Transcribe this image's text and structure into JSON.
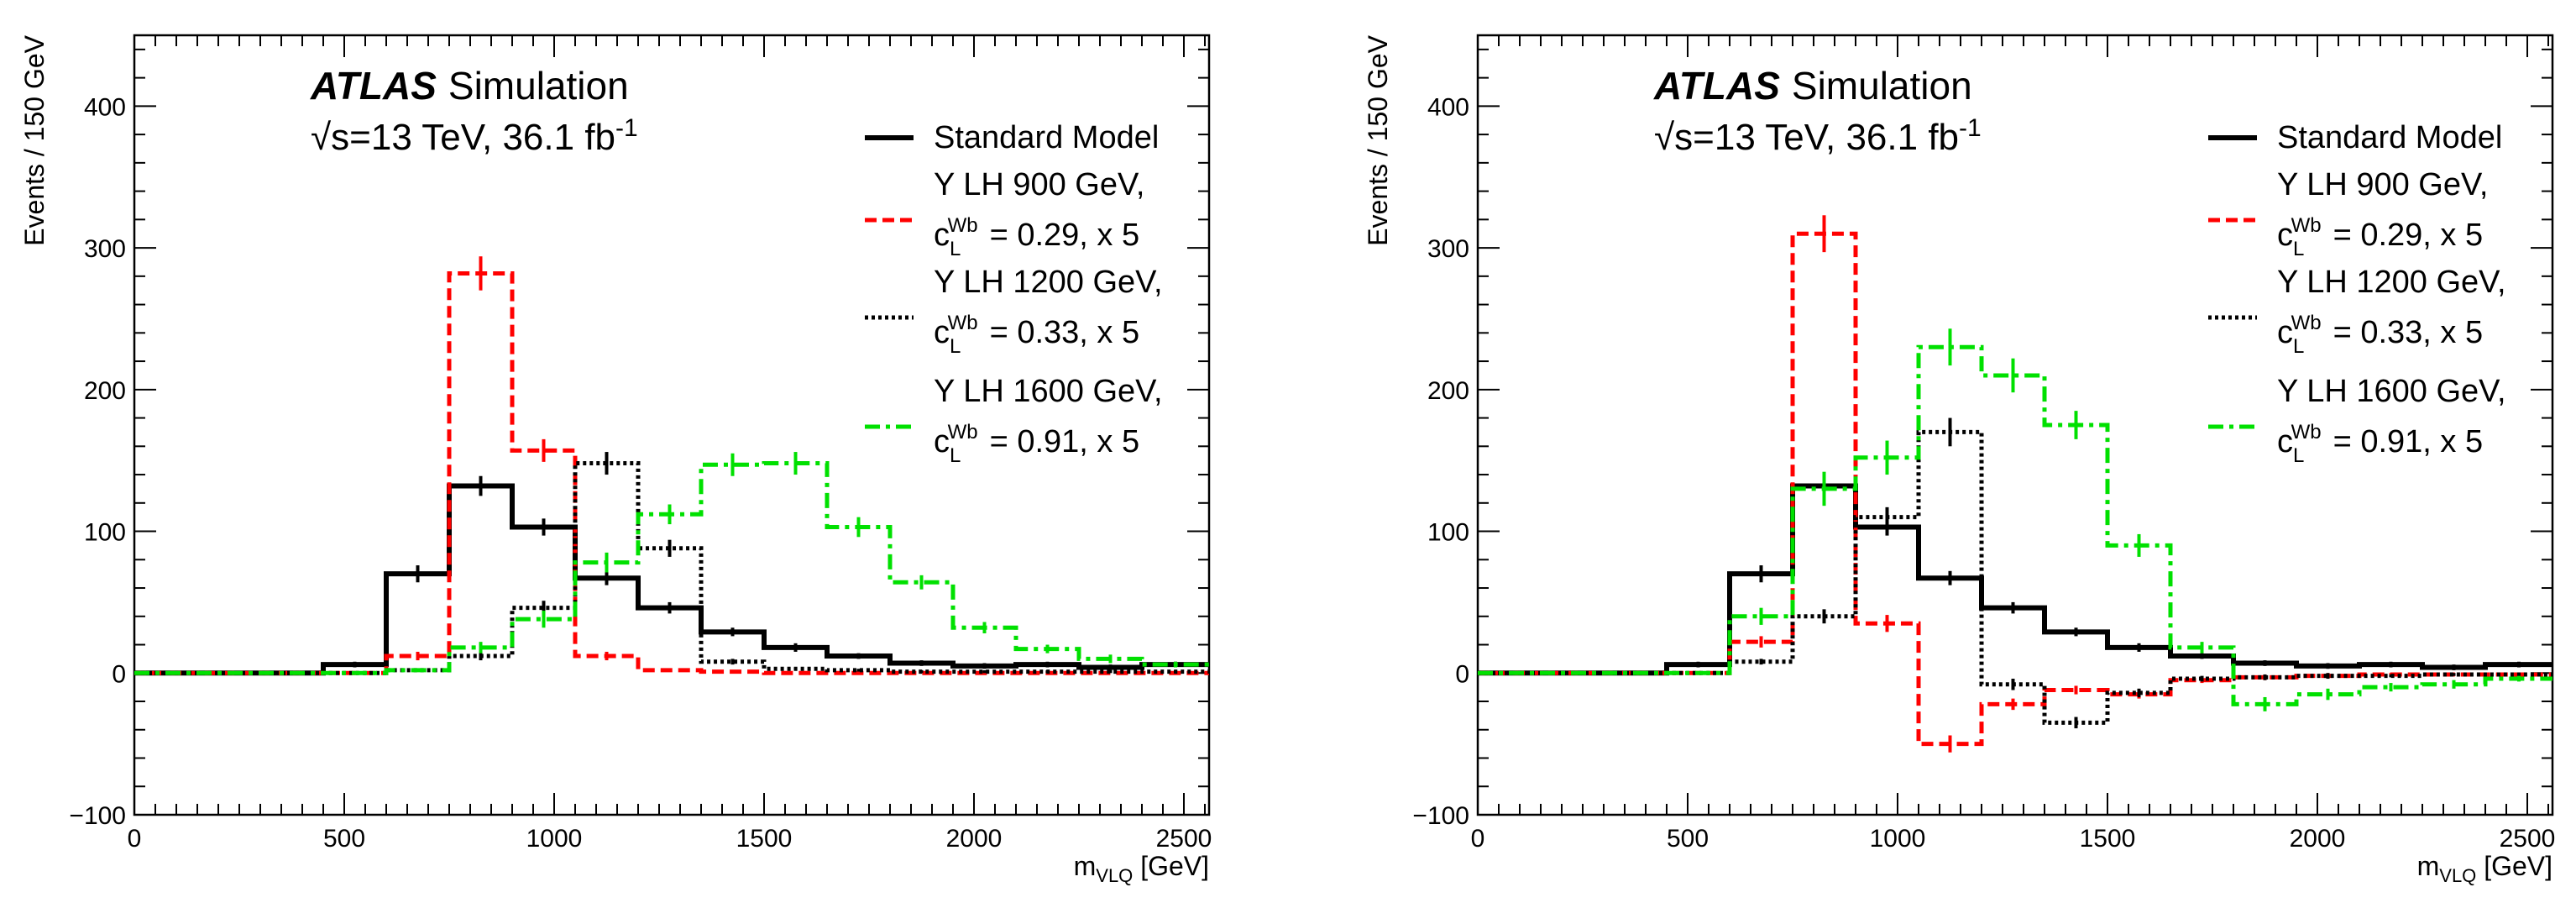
{
  "chart_data": [
    {
      "type": "step-histogram",
      "header": {
        "brand": "ATLAS",
        "label": "Simulation"
      },
      "energy": {
        "sqrt": "√",
        "text": "s=13 TeV, 36.1 fb",
        "exponent": "-1"
      },
      "ylabel": "Events / 150 GeV",
      "xlabel": {
        "main": "m",
        "sub": "VLQ",
        "unit": " [GeV]"
      },
      "xlim": [
        0,
        2560
      ],
      "ylim": [
        -100,
        450
      ],
      "xticks": [
        0,
        500,
        1000,
        1500,
        2000,
        2500
      ],
      "xtick_labels": [
        "0",
        "500",
        "1000",
        "1500",
        "2000",
        "2500"
      ],
      "yticks": [
        -100,
        0,
        100,
        200,
        300,
        400
      ],
      "ytick_labels": [
        "−100",
        "0",
        "100",
        "200",
        "300",
        "400"
      ],
      "bin_edges": [
        0,
        150,
        300,
        450,
        600,
        750,
        900,
        1050,
        1200,
        1350,
        1500,
        1650,
        1800,
        1950,
        2100,
        2250,
        2400,
        2560
      ],
      "series": [
        {
          "name": "Standard Model",
          "color": "#000000",
          "dash": "solid",
          "values": [
            0,
            0,
            0,
            6,
            70,
            132,
            103,
            67,
            46,
            29,
            18,
            12,
            7,
            5,
            6,
            4,
            6
          ],
          "errors": [
            0,
            0,
            0,
            2,
            6,
            7,
            6,
            5,
            4,
            3,
            3,
            2,
            2,
            2,
            2,
            2,
            2
          ]
        },
        {
          "name": "Y LH 900 GeV,",
          "coupling": "= 0.29, x 5",
          "color": "#ff0000",
          "dash": "dashed",
          "values": [
            0,
            0,
            0,
            0,
            12,
            282,
            157,
            12,
            2,
            1,
            0,
            0,
            0,
            0,
            0,
            0,
            0
          ],
          "errors": [
            0,
            0,
            0,
            0,
            3,
            12,
            8,
            3,
            1,
            1,
            0,
            0,
            0,
            0,
            0,
            0,
            0
          ]
        },
        {
          "name": "Y LH 1200 GeV,",
          "coupling": "= 0.33, x 5",
          "color": "#000000",
          "dash": "dotted",
          "values": [
            0,
            0,
            0,
            0,
            2,
            12,
            46,
            148,
            88,
            8,
            3,
            2,
            1,
            1,
            1,
            1,
            1
          ],
          "errors": [
            0,
            0,
            0,
            0,
            1,
            3,
            5,
            8,
            6,
            2,
            1,
            1,
            1,
            1,
            1,
            1,
            1
          ]
        },
        {
          "name": "Y LH 1600 GeV,",
          "coupling": "= 0.91, x 5",
          "color": "#00e000",
          "dash": "dashdot",
          "values": [
            0,
            0,
            0,
            0,
            2,
            18,
            38,
            78,
            112,
            147,
            148,
            103,
            64,
            32,
            17,
            10,
            6
          ],
          "errors": [
            0,
            0,
            0,
            0,
            1,
            4,
            6,
            7,
            7,
            8,
            8,
            7,
            5,
            4,
            3,
            3,
            2
          ]
        }
      ]
    },
    {
      "type": "step-histogram",
      "header": {
        "brand": "ATLAS",
        "label": "Simulation"
      },
      "energy": {
        "sqrt": "√",
        "text": "s=13 TeV, 36.1 fb",
        "exponent": "-1"
      },
      "ylabel": "Events / 150 GeV",
      "xlabel": {
        "main": "m",
        "sub": "VLQ",
        "unit": " [GeV]"
      },
      "xlim": [
        0,
        2560
      ],
      "ylim": [
        -100,
        450
      ],
      "xticks": [
        0,
        500,
        1000,
        1500,
        2000,
        2500
      ],
      "xtick_labels": [
        "0",
        "500",
        "1000",
        "1500",
        "2000",
        "2500"
      ],
      "yticks": [
        -100,
        0,
        100,
        200,
        300,
        400
      ],
      "ytick_labels": [
        "−100",
        "0",
        "100",
        "200",
        "300",
        "400"
      ],
      "bin_edges": [
        0,
        150,
        300,
        450,
        600,
        750,
        900,
        1050,
        1200,
        1350,
        1500,
        1650,
        1800,
        1950,
        2100,
        2250,
        2400,
        2560
      ],
      "series": [
        {
          "name": "Standard Model",
          "color": "#000000",
          "dash": "solid",
          "values": [
            0,
            0,
            0,
            6,
            70,
            132,
            103,
            67,
            46,
            29,
            18,
            12,
            7,
            5,
            6,
            4,
            6
          ],
          "errors": [
            0,
            0,
            0,
            2,
            6,
            7,
            6,
            5,
            4,
            3,
            3,
            2,
            2,
            2,
            2,
            2,
            2
          ]
        },
        {
          "name": "Y LH 900 GeV,",
          "coupling": "= 0.29, x 5",
          "color": "#ff0000",
          "dash": "dashed",
          "values": [
            0,
            0,
            0,
            0,
            22,
            310,
            35,
            -50,
            -22,
            -12,
            -15,
            -5,
            -3,
            -2,
            -1,
            -1,
            -1
          ],
          "errors": [
            0,
            0,
            0,
            0,
            4,
            13,
            6,
            6,
            4,
            3,
            3,
            2,
            2,
            2,
            1,
            1,
            1
          ]
        },
        {
          "name": "Y LH 1200 GeV,",
          "coupling": "= 0.33, x 5",
          "color": "#000000",
          "dash": "dotted",
          "values": [
            0,
            0,
            0,
            0,
            8,
            40,
            110,
            170,
            -8,
            -35,
            -14,
            -4,
            -3,
            -2,
            -2,
            -1,
            -1
          ],
          "errors": [
            0,
            0,
            0,
            0,
            2,
            5,
            7,
            10,
            4,
            4,
            3,
            2,
            2,
            2,
            1,
            1,
            1
          ]
        },
        {
          "name": "Y LH 1600 GeV,",
          "coupling": "= 0.91, x 5",
          "color": "#00e000",
          "dash": "dashdot",
          "values": [
            0,
            0,
            0,
            0,
            40,
            130,
            152,
            230,
            210,
            175,
            90,
            18,
            -22,
            -15,
            -10,
            -8,
            -4
          ],
          "errors": [
            0,
            0,
            0,
            0,
            6,
            12,
            12,
            13,
            12,
            10,
            8,
            4,
            5,
            4,
            3,
            3,
            2
          ]
        }
      ]
    }
  ]
}
